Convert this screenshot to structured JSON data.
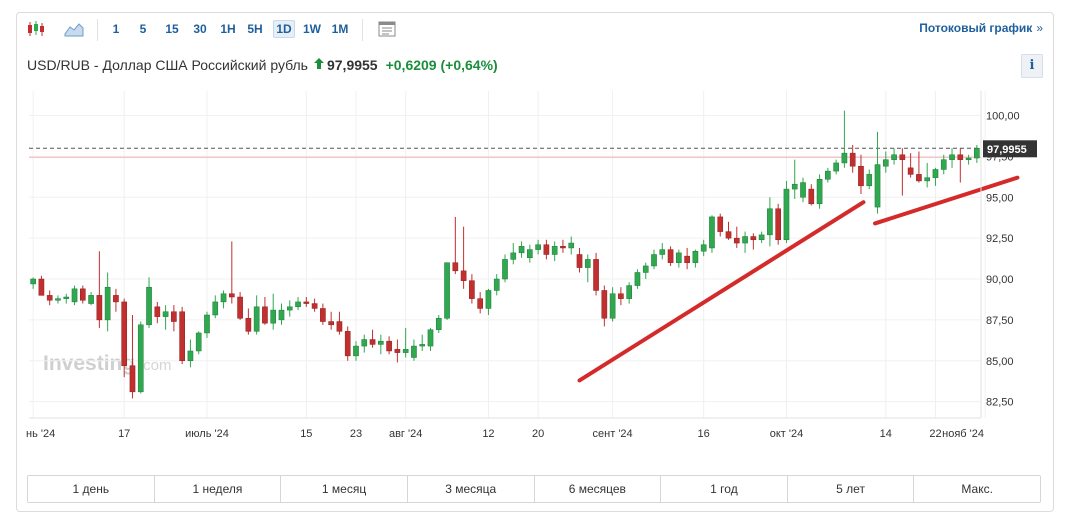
{
  "toolbar": {
    "timeframes": [
      "1",
      "5",
      "15",
      "30",
      "1H",
      "5H",
      "1D",
      "1W",
      "1M"
    ],
    "active_timeframe": "1D",
    "stream_link": "Потоковый график",
    "stream_chevron": "»"
  },
  "quote": {
    "name": "USD/RUB - Доллар США Российский рубль",
    "price": "97,9955",
    "change": "+0,6209",
    "change_pct": "(+0,64%)",
    "up_color": "#1a8e3b"
  },
  "info_label": "i",
  "watermark": {
    "main": "Investing",
    "suffix": ".com"
  },
  "range_buttons": [
    "1 день",
    "1 неделя",
    "1 месяц",
    "3 месяца",
    "6 месяцев",
    "1 год",
    "5 лет",
    "Макс."
  ],
  "chart_data": {
    "type": "candlestick",
    "ylim": [
      81.5,
      101.5
    ],
    "yticks": [
      82.5,
      85.0,
      87.5,
      90.0,
      92.5,
      95.0,
      97.5,
      100.0
    ],
    "ytick_labels": [
      "82,50",
      "85,00",
      "87,50",
      "90,00",
      "92,50",
      "95,00",
      "97,50",
      "100,00"
    ],
    "xticks": [
      {
        "label": "нь '24",
        "i": 0
      },
      {
        "label": "17",
        "i": 11
      },
      {
        "label": "июль '24",
        "i": 21
      },
      {
        "label": "15",
        "i": 33
      },
      {
        "label": "23",
        "i": 39
      },
      {
        "label": "авг '24",
        "i": 45
      },
      {
        "label": "12",
        "i": 55
      },
      {
        "label": "20",
        "i": 61
      },
      {
        "label": "сент '24",
        "i": 70
      },
      {
        "label": "16",
        "i": 81
      },
      {
        "label": "окт '24",
        "i": 91
      },
      {
        "label": "14",
        "i": 103
      },
      {
        "label": "22",
        "i": 109
      },
      {
        "label": "нояб '24",
        "i": 115
      }
    ],
    "last_price": 97.9955,
    "last_price_label": "97,9955",
    "up_color": "#2fa84f",
    "down_color": "#c12f2f",
    "price_line_color": "#f3b3b3",
    "annotation_color": "#d42a2a",
    "candles": [
      {
        "o": 89.7,
        "h": 90.1,
        "l": 89.4,
        "c": 90.0
      },
      {
        "o": 90.0,
        "h": 90.2,
        "l": 89.0,
        "c": 89.0
      },
      {
        "o": 89.0,
        "h": 89.3,
        "l": 88.4,
        "c": 88.7
      },
      {
        "o": 88.7,
        "h": 89.0,
        "l": 88.5,
        "c": 88.8
      },
      {
        "o": 88.8,
        "h": 89.1,
        "l": 88.5,
        "c": 88.9
      },
      {
        "o": 88.6,
        "h": 89.6,
        "l": 88.4,
        "c": 89.4
      },
      {
        "o": 89.4,
        "h": 89.6,
        "l": 88.5,
        "c": 88.7
      },
      {
        "o": 88.5,
        "h": 89.2,
        "l": 88.4,
        "c": 89.0
      },
      {
        "o": 89.0,
        "h": 91.7,
        "l": 87.0,
        "c": 87.5
      },
      {
        "o": 87.5,
        "h": 90.4,
        "l": 86.8,
        "c": 89.5
      },
      {
        "o": 89.0,
        "h": 89.4,
        "l": 88.0,
        "c": 88.6
      },
      {
        "o": 88.6,
        "h": 88.8,
        "l": 84.0,
        "c": 84.7
      },
      {
        "o": 84.7,
        "h": 87.8,
        "l": 82.7,
        "c": 83.1
      },
      {
        "o": 83.1,
        "h": 87.4,
        "l": 83.0,
        "c": 87.2
      },
      {
        "o": 87.2,
        "h": 90.1,
        "l": 87.0,
        "c": 89.5
      },
      {
        "o": 88.3,
        "h": 88.6,
        "l": 87.3,
        "c": 87.7
      },
      {
        "o": 87.7,
        "h": 88.4,
        "l": 86.9,
        "c": 88.0
      },
      {
        "o": 88.0,
        "h": 88.4,
        "l": 86.8,
        "c": 87.4
      },
      {
        "o": 88.0,
        "h": 88.3,
        "l": 84.8,
        "c": 85.0
      },
      {
        "o": 85.0,
        "h": 86.3,
        "l": 84.6,
        "c": 85.6
      },
      {
        "o": 85.6,
        "h": 86.8,
        "l": 85.4,
        "c": 86.7
      },
      {
        "o": 86.7,
        "h": 88.0,
        "l": 86.4,
        "c": 87.8
      },
      {
        "o": 87.8,
        "h": 89.0,
        "l": 87.6,
        "c": 88.6
      },
      {
        "o": 88.6,
        "h": 89.3,
        "l": 88.2,
        "c": 89.1
      },
      {
        "o": 89.1,
        "h": 92.3,
        "l": 88.5,
        "c": 88.9
      },
      {
        "o": 88.9,
        "h": 89.2,
        "l": 87.5,
        "c": 87.6
      },
      {
        "o": 87.6,
        "h": 88.2,
        "l": 86.6,
        "c": 86.8
      },
      {
        "o": 86.8,
        "h": 89.0,
        "l": 86.6,
        "c": 88.3
      },
      {
        "o": 88.3,
        "h": 88.9,
        "l": 87.2,
        "c": 87.3
      },
      {
        "o": 87.3,
        "h": 89.1,
        "l": 86.9,
        "c": 88.1
      },
      {
        "o": 87.5,
        "h": 88.5,
        "l": 87.2,
        "c": 88.1
      },
      {
        "o": 88.1,
        "h": 88.7,
        "l": 87.7,
        "c": 88.3
      },
      {
        "o": 88.3,
        "h": 88.9,
        "l": 88.1,
        "c": 88.6
      },
      {
        "o": 88.6,
        "h": 88.9,
        "l": 88.3,
        "c": 88.5
      },
      {
        "o": 88.5,
        "h": 88.8,
        "l": 88.0,
        "c": 88.2
      },
      {
        "o": 88.2,
        "h": 88.5,
        "l": 87.2,
        "c": 87.4
      },
      {
        "o": 87.4,
        "h": 88.0,
        "l": 86.9,
        "c": 87.2
      },
      {
        "o": 87.4,
        "h": 88.0,
        "l": 86.6,
        "c": 86.8
      },
      {
        "o": 86.8,
        "h": 87.1,
        "l": 85.0,
        "c": 85.3
      },
      {
        "o": 85.3,
        "h": 86.2,
        "l": 85.0,
        "c": 85.9
      },
      {
        "o": 85.9,
        "h": 86.6,
        "l": 85.5,
        "c": 86.3
      },
      {
        "o": 86.3,
        "h": 86.9,
        "l": 85.8,
        "c": 86.0
      },
      {
        "o": 86.0,
        "h": 86.6,
        "l": 85.4,
        "c": 86.2
      },
      {
        "o": 86.2,
        "h": 86.5,
        "l": 85.4,
        "c": 85.6
      },
      {
        "o": 85.7,
        "h": 86.3,
        "l": 84.9,
        "c": 85.5
      },
      {
        "o": 85.5,
        "h": 87.0,
        "l": 85.2,
        "c": 85.7
      },
      {
        "o": 85.2,
        "h": 86.3,
        "l": 85.0,
        "c": 85.9
      },
      {
        "o": 85.9,
        "h": 86.6,
        "l": 85.6,
        "c": 86.0
      },
      {
        "o": 85.9,
        "h": 87.0,
        "l": 85.6,
        "c": 86.9
      },
      {
        "o": 86.9,
        "h": 87.8,
        "l": 86.7,
        "c": 87.6
      },
      {
        "o": 87.6,
        "h": 91.0,
        "l": 87.5,
        "c": 91.0
      },
      {
        "o": 91.0,
        "h": 93.8,
        "l": 90.3,
        "c": 90.5
      },
      {
        "o": 90.5,
        "h": 93.2,
        "l": 89.4,
        "c": 89.9
      },
      {
        "o": 89.9,
        "h": 90.3,
        "l": 88.5,
        "c": 88.8
      },
      {
        "o": 88.8,
        "h": 89.2,
        "l": 87.9,
        "c": 88.2
      },
      {
        "o": 88.2,
        "h": 89.4,
        "l": 87.8,
        "c": 89.3
      },
      {
        "o": 89.3,
        "h": 90.3,
        "l": 89.0,
        "c": 90.0
      },
      {
        "o": 90.0,
        "h": 91.5,
        "l": 89.8,
        "c": 91.2
      },
      {
        "o": 91.2,
        "h": 92.2,
        "l": 90.9,
        "c": 91.6
      },
      {
        "o": 91.6,
        "h": 92.3,
        "l": 91.3,
        "c": 92.0
      },
      {
        "o": 91.3,
        "h": 92.1,
        "l": 91.0,
        "c": 91.8
      },
      {
        "o": 91.8,
        "h": 92.4,
        "l": 91.5,
        "c": 92.1
      },
      {
        "o": 92.1,
        "h": 92.4,
        "l": 91.2,
        "c": 91.5
      },
      {
        "o": 91.5,
        "h": 92.3,
        "l": 91.1,
        "c": 92.0
      },
      {
        "o": 92.0,
        "h": 92.4,
        "l": 91.6,
        "c": 91.9
      },
      {
        "o": 91.9,
        "h": 92.6,
        "l": 91.5,
        "c": 92.2
      },
      {
        "o": 91.5,
        "h": 91.9,
        "l": 90.4,
        "c": 90.7
      },
      {
        "o": 90.7,
        "h": 91.5,
        "l": 89.8,
        "c": 91.2
      },
      {
        "o": 91.2,
        "h": 91.6,
        "l": 89.0,
        "c": 89.3
      },
      {
        "o": 89.3,
        "h": 89.6,
        "l": 87.1,
        "c": 87.6
      },
      {
        "o": 87.6,
        "h": 89.5,
        "l": 87.4,
        "c": 89.1
      },
      {
        "o": 89.1,
        "h": 89.5,
        "l": 88.4,
        "c": 88.8
      },
      {
        "o": 88.8,
        "h": 89.8,
        "l": 88.5,
        "c": 89.6
      },
      {
        "o": 89.6,
        "h": 90.6,
        "l": 89.4,
        "c": 90.4
      },
      {
        "o": 90.4,
        "h": 91.0,
        "l": 90.0,
        "c": 90.8
      },
      {
        "o": 90.8,
        "h": 91.8,
        "l": 90.6,
        "c": 91.5
      },
      {
        "o": 91.5,
        "h": 92.2,
        "l": 91.2,
        "c": 91.8
      },
      {
        "o": 91.8,
        "h": 92.0,
        "l": 90.8,
        "c": 91.0
      },
      {
        "o": 91.0,
        "h": 91.8,
        "l": 90.7,
        "c": 91.6
      },
      {
        "o": 91.4,
        "h": 91.9,
        "l": 90.6,
        "c": 91.0
      },
      {
        "o": 91.0,
        "h": 91.8,
        "l": 90.7,
        "c": 91.7
      },
      {
        "o": 91.7,
        "h": 92.4,
        "l": 91.4,
        "c": 92.1
      },
      {
        "o": 91.9,
        "h": 93.9,
        "l": 91.6,
        "c": 93.8
      },
      {
        "o": 93.8,
        "h": 94.0,
        "l": 92.6,
        "c": 92.9
      },
      {
        "o": 92.9,
        "h": 93.5,
        "l": 92.4,
        "c": 92.5
      },
      {
        "o": 92.5,
        "h": 93.2,
        "l": 91.9,
        "c": 92.2
      },
      {
        "o": 92.2,
        "h": 92.9,
        "l": 91.6,
        "c": 92.6
      },
      {
        "o": 92.6,
        "h": 92.8,
        "l": 91.8,
        "c": 92.4
      },
      {
        "o": 92.4,
        "h": 92.9,
        "l": 92.2,
        "c": 92.7
      },
      {
        "o": 92.7,
        "h": 95.0,
        "l": 92.0,
        "c": 94.3
      },
      {
        "o": 94.3,
        "h": 94.6,
        "l": 92.1,
        "c": 92.4
      },
      {
        "o": 92.4,
        "h": 96.0,
        "l": 92.2,
        "c": 95.5
      },
      {
        "o": 95.5,
        "h": 97.3,
        "l": 94.9,
        "c": 95.8
      },
      {
        "o": 95.0,
        "h": 96.2,
        "l": 94.7,
        "c": 95.9
      },
      {
        "o": 95.5,
        "h": 95.8,
        "l": 94.5,
        "c": 94.6
      },
      {
        "o": 94.6,
        "h": 96.4,
        "l": 94.3,
        "c": 96.1
      },
      {
        "o": 96.1,
        "h": 96.8,
        "l": 95.9,
        "c": 96.6
      },
      {
        "o": 96.6,
        "h": 97.3,
        "l": 96.4,
        "c": 97.1
      },
      {
        "o": 97.1,
        "h": 100.3,
        "l": 96.8,
        "c": 97.7
      },
      {
        "o": 97.7,
        "h": 98.2,
        "l": 96.5,
        "c": 96.9
      },
      {
        "o": 96.9,
        "h": 97.6,
        "l": 95.2,
        "c": 95.7
      },
      {
        "o": 95.7,
        "h": 96.7,
        "l": 95.5,
        "c": 96.4
      },
      {
        "o": 94.4,
        "h": 99.0,
        "l": 94.0,
        "c": 97.0
      },
      {
        "o": 96.9,
        "h": 97.8,
        "l": 96.5,
        "c": 97.3
      },
      {
        "o": 97.3,
        "h": 98.0,
        "l": 97.0,
        "c": 97.6
      },
      {
        "o": 97.6,
        "h": 98.0,
        "l": 95.1,
        "c": 97.3
      },
      {
        "o": 96.8,
        "h": 97.7,
        "l": 96.2,
        "c": 96.4
      },
      {
        "o": 96.4,
        "h": 97.8,
        "l": 95.9,
        "c": 96.0
      },
      {
        "o": 96.0,
        "h": 97.1,
        "l": 95.6,
        "c": 96.2
      },
      {
        "o": 96.2,
        "h": 96.8,
        "l": 95.7,
        "c": 96.7
      },
      {
        "o": 96.7,
        "h": 97.6,
        "l": 96.4,
        "c": 97.3
      },
      {
        "o": 97.3,
        "h": 98.0,
        "l": 96.8,
        "c": 97.6
      },
      {
        "o": 97.6,
        "h": 98.0,
        "l": 95.9,
        "c": 97.3
      },
      {
        "o": 97.3,
        "h": 97.6,
        "l": 97.0,
        "c": 97.4
      },
      {
        "o": 97.4,
        "h": 98.2,
        "l": 97.1,
        "c": 98.0
      }
    ],
    "trendlines": [
      {
        "i1": 66.0,
        "y1": 83.8,
        "i2": 100.3,
        "y2": 94.7
      },
      {
        "i1": 101.7,
        "y1": 93.4,
        "i2": 118.9,
        "y2": 96.2
      }
    ]
  }
}
